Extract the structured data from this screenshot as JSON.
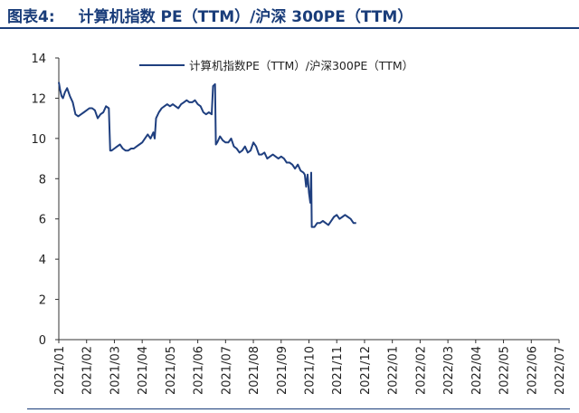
{
  "figure": {
    "label": "图表4:",
    "title": "计算机指数 PE（TTM）/沪深 300PE（TTM）"
  },
  "colors": {
    "title": "#1a3d7a",
    "series": "#1f3f7f",
    "axis": "#333333"
  },
  "chart_data": {
    "type": "line",
    "title": "计算机指数 PE（TTM）/沪深 300PE（TTM）",
    "xlabel": "",
    "ylabel": "",
    "ylim": [
      0,
      14
    ],
    "yticks": [
      0,
      2,
      4,
      6,
      8,
      10,
      12,
      14
    ],
    "categories": [
      "2021/01",
      "2021/02",
      "2021/03",
      "2021/04",
      "2021/05",
      "2021/06",
      "2021/07",
      "2021/08",
      "2021/09",
      "2021/10",
      "2021/11",
      "2021/12",
      "2022/01",
      "2022/02",
      "2022/03",
      "2022/04",
      "2022/05",
      "2022/06",
      "2022/07"
    ],
    "legend": "计算机指数PE（TTM）/沪深300PE（TTM）",
    "legend_position": "top",
    "grid": false,
    "series": [
      {
        "name": "计算机指数PE（TTM）/沪深300PE（TTM）",
        "points": [
          [
            0.0,
            12.8
          ],
          [
            0.05,
            12.4
          ],
          [
            0.1,
            12.1
          ],
          [
            0.15,
            12.0
          ],
          [
            0.22,
            12.3
          ],
          [
            0.3,
            12.5
          ],
          [
            0.4,
            12.1
          ],
          [
            0.5,
            11.8
          ],
          [
            0.6,
            11.2
          ],
          [
            0.7,
            11.1
          ],
          [
            0.8,
            11.2
          ],
          [
            0.9,
            11.3
          ],
          [
            1.0,
            11.4
          ],
          [
            1.1,
            11.5
          ],
          [
            1.2,
            11.5
          ],
          [
            1.3,
            11.4
          ],
          [
            1.4,
            11.0
          ],
          [
            1.5,
            11.2
          ],
          [
            1.6,
            11.3
          ],
          [
            1.7,
            11.6
          ],
          [
            1.8,
            11.5
          ],
          [
            1.85,
            9.4
          ],
          [
            1.9,
            9.4
          ],
          [
            2.0,
            9.5
          ],
          [
            2.1,
            9.6
          ],
          [
            2.2,
            9.7
          ],
          [
            2.3,
            9.5
          ],
          [
            2.4,
            9.4
          ],
          [
            2.5,
            9.4
          ],
          [
            2.6,
            9.5
          ],
          [
            2.7,
            9.5
          ],
          [
            2.8,
            9.6
          ],
          [
            2.9,
            9.7
          ],
          [
            3.0,
            9.8
          ],
          [
            3.1,
            10.0
          ],
          [
            3.2,
            10.2
          ],
          [
            3.3,
            10.0
          ],
          [
            3.4,
            10.3
          ],
          [
            3.45,
            10.0
          ],
          [
            3.5,
            11.0
          ],
          [
            3.6,
            11.3
          ],
          [
            3.7,
            11.5
          ],
          [
            3.8,
            11.6
          ],
          [
            3.9,
            11.7
          ],
          [
            4.0,
            11.6
          ],
          [
            4.1,
            11.7
          ],
          [
            4.2,
            11.6
          ],
          [
            4.3,
            11.5
          ],
          [
            4.4,
            11.7
          ],
          [
            4.5,
            11.8
          ],
          [
            4.6,
            11.9
          ],
          [
            4.7,
            11.8
          ],
          [
            4.8,
            11.8
          ],
          [
            4.9,
            11.9
          ],
          [
            5.0,
            11.7
          ],
          [
            5.1,
            11.6
          ],
          [
            5.2,
            11.3
          ],
          [
            5.3,
            11.2
          ],
          [
            5.4,
            11.3
          ],
          [
            5.5,
            11.2
          ],
          [
            5.55,
            12.6
          ],
          [
            5.62,
            12.7
          ],
          [
            5.65,
            9.7
          ],
          [
            5.7,
            9.8
          ],
          [
            5.8,
            10.1
          ],
          [
            5.9,
            9.9
          ],
          [
            6.0,
            9.8
          ],
          [
            6.1,
            9.8
          ],
          [
            6.2,
            10.0
          ],
          [
            6.3,
            9.6
          ],
          [
            6.4,
            9.5
          ],
          [
            6.5,
            9.3
          ],
          [
            6.6,
            9.4
          ],
          [
            6.7,
            9.6
          ],
          [
            6.8,
            9.3
          ],
          [
            6.9,
            9.4
          ],
          [
            7.0,
            9.8
          ],
          [
            7.1,
            9.6
          ],
          [
            7.2,
            9.2
          ],
          [
            7.3,
            9.2
          ],
          [
            7.4,
            9.3
          ],
          [
            7.5,
            9.0
          ],
          [
            7.6,
            9.1
          ],
          [
            7.7,
            9.2
          ],
          [
            7.8,
            9.1
          ],
          [
            7.9,
            9.0
          ],
          [
            8.0,
            9.1
          ],
          [
            8.1,
            9.0
          ],
          [
            8.2,
            8.8
          ],
          [
            8.3,
            8.8
          ],
          [
            8.4,
            8.7
          ],
          [
            8.5,
            8.5
          ],
          [
            8.6,
            8.7
          ],
          [
            8.7,
            8.4
          ],
          [
            8.8,
            8.3
          ],
          [
            8.85,
            8.2
          ],
          [
            8.9,
            7.6
          ],
          [
            8.95,
            8.2
          ],
          [
            9.0,
            7.3
          ],
          [
            9.05,
            6.8
          ],
          [
            9.08,
            8.3
          ],
          [
            9.1,
            5.6
          ],
          [
            9.2,
            5.6
          ],
          [
            9.3,
            5.8
          ],
          [
            9.4,
            5.8
          ],
          [
            9.5,
            5.9
          ],
          [
            9.6,
            5.8
          ],
          [
            9.7,
            5.7
          ],
          [
            9.8,
            5.9
          ],
          [
            9.9,
            6.1
          ],
          [
            10.0,
            6.2
          ],
          [
            10.1,
            6.0
          ],
          [
            10.2,
            6.1
          ],
          [
            10.3,
            6.2
          ],
          [
            10.4,
            6.1
          ],
          [
            10.5,
            6.0
          ],
          [
            10.6,
            5.8
          ],
          [
            10.7,
            5.8
          ]
        ]
      }
    ]
  }
}
